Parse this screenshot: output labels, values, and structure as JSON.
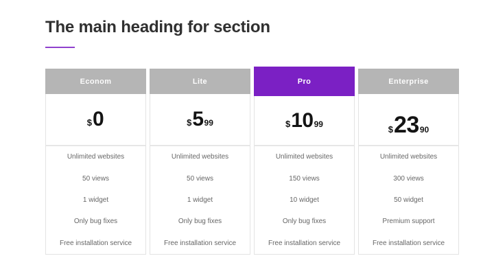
{
  "heading": {
    "title": "The main heading for section"
  },
  "colors": {
    "accent": "#7b20c4",
    "header_bg": "#b5b5b5",
    "heading_text": "#303030",
    "feature_text": "#666666",
    "cell_border": "#e3e3e3"
  },
  "plans": [
    {
      "name": "Econom",
      "featured": false,
      "price": {
        "currency": "$",
        "whole": "0",
        "cents": ""
      },
      "features": [
        "Unlimited websites",
        "50 views",
        "1 widget",
        "Only bug fixes",
        "Free installation service"
      ]
    },
    {
      "name": "Lite",
      "featured": false,
      "price": {
        "currency": "$",
        "whole": "5",
        "cents": "99"
      },
      "features": [
        "Unlimited websites",
        "50 views",
        "1 widget",
        "Only bug fixes",
        "Free installation service"
      ]
    },
    {
      "name": "Pro",
      "featured": true,
      "price": {
        "currency": "$",
        "whole": "10",
        "cents": "99"
      },
      "features": [
        "Unlimited websites",
        "150 views",
        "10 widget",
        "Only bug fixes",
        "Free installation service"
      ]
    },
    {
      "name": "Enterprise",
      "featured": false,
      "price": {
        "currency": "$",
        "whole": "23",
        "cents": "90"
      },
      "features": [
        "Unlimited websites",
        "300 views",
        "50 widget",
        "Premium support",
        "Free installation service"
      ]
    }
  ]
}
